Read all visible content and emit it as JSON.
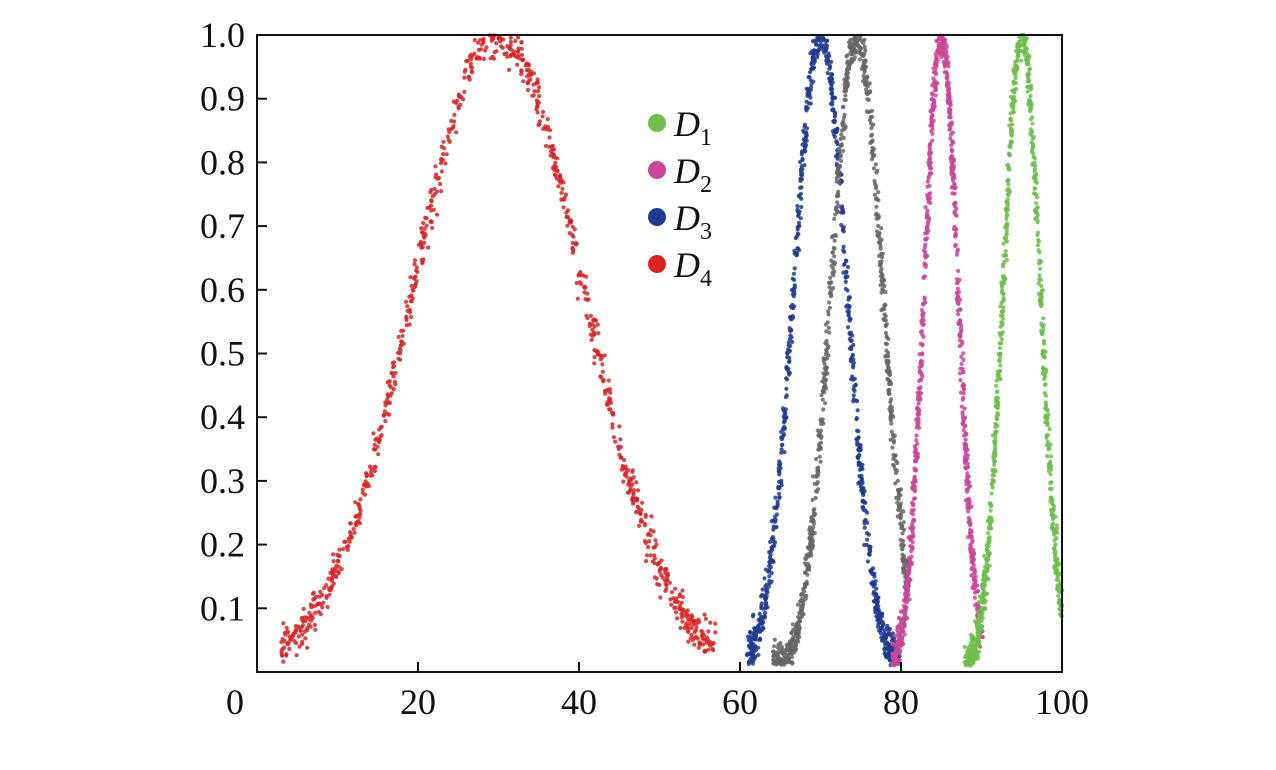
{
  "chart_data": {
    "type": "scatter",
    "title": "",
    "xlabel": "",
    "ylabel": "",
    "xlim": [
      0,
      100
    ],
    "ylim": [
      0,
      1.0
    ],
    "grid": false,
    "legend_position": "top-center",
    "x_ticks": [
      "0",
      "20",
      "40",
      "60",
      "80",
      "100"
    ],
    "y_ticks": [
      "0.1",
      "0.2",
      "0.3",
      "0.4",
      "0.5",
      "0.6",
      "0.7",
      "0.8",
      "0.9",
      "1.0"
    ],
    "legend": [
      {
        "symbol": "D",
        "subscript": "1",
        "color": "#6cc04a"
      },
      {
        "symbol": "D",
        "subscript": "2",
        "color": "#cc4499"
      },
      {
        "symbol": "D",
        "subscript": "3",
        "color": "#1f3a93"
      },
      {
        "symbol": "D",
        "subscript": "4",
        "color": "#dd2222"
      }
    ],
    "series": [
      {
        "color": "#dd2222",
        "center": 30,
        "sigma": 10.5,
        "x_range": [
          3,
          57
        ]
      },
      {
        "color": "#1f3a93",
        "center": 70,
        "sigma": 3.3,
        "x_range": [
          61,
          80
        ]
      },
      {
        "color": "#666666",
        "center": 74.5,
        "sigma": 3.2,
        "x_range": [
          64,
          81
        ]
      },
      {
        "color": "#cc4499",
        "center": 85,
        "sigma": 2.1,
        "x_range": [
          79,
          90
        ]
      },
      {
        "color": "#6cc04a",
        "center": 95,
        "sigma": 2.3,
        "x_range": [
          88,
          100
        ]
      }
    ]
  }
}
